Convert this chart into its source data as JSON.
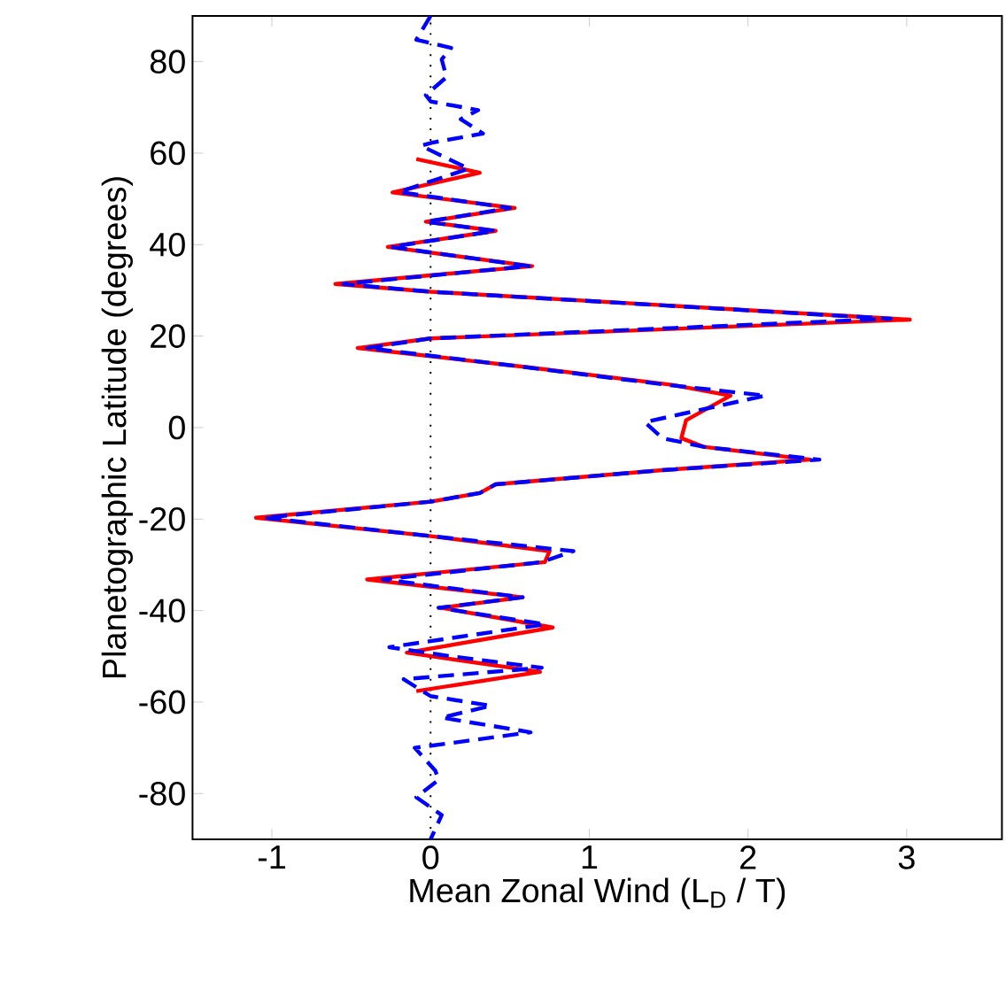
{
  "chart_data": {
    "type": "line",
    "xlabel": "Mean Zonal Wind (L$_{D}$ / T)",
    "ylabel": "Planetographic Latitude (degrees)",
    "xlim": [
      -1.5,
      3.6
    ],
    "ylim": [
      -90,
      90
    ],
    "xticks": [
      -1,
      0,
      1,
      2,
      3
    ],
    "yticks": [
      -80,
      -60,
      -40,
      -20,
      0,
      20,
      40,
      60,
      80
    ],
    "grid": false,
    "marker": "none",
    "ref_lines": [
      {
        "axis": "x",
        "value": 0,
        "color": "#000000",
        "line_style": "dotted"
      }
    ],
    "series": [
      {
        "color": "#ff0000",
        "line_style": "solid",
        "x": [
          -0.09,
          0.31,
          -0.24,
          0.53,
          -0.03,
          0.41,
          -0.27,
          0.64,
          -0.6,
          0.0,
          3.02,
          0.0,
          -0.46,
          0.61,
          1.53,
          1.89,
          1.61,
          1.58,
          1.72,
          2.39,
          1.46,
          0.41,
          0.31,
          0.0,
          -1.1,
          -0.03,
          0.75,
          0.72,
          -0.4,
          0.58,
          0.07,
          0.77,
          -0.15,
          0.69,
          -0.09
        ],
        "values": [
          58.7,
          55.7,
          51.4,
          48,
          45,
          43,
          39.5,
          35.3,
          31.4,
          29.7,
          23.6,
          19.5,
          17.4,
          13.2,
          9.3,
          7,
          1.6,
          -2.3,
          -4.2,
          -7,
          -9.3,
          -12.4,
          -14.3,
          -16.2,
          -19.7,
          -23.6,
          -27,
          -29.4,
          -33.2,
          -37.1,
          -39.4,
          -43.7,
          -49.2,
          -53.4,
          -57.6
        ]
      },
      {
        "color": "#0000ff",
        "line_style": "dashed",
        "x": [
          0,
          -0.09,
          0.13,
          0.07,
          0.1,
          -0.03,
          0.0,
          0.3,
          0.19,
          0.33,
          0.01,
          -0.06,
          0.24,
          -0.2,
          0.5,
          -0.03,
          0.41,
          -0.25,
          0.62,
          -0.55,
          0.0,
          2.9,
          0.0,
          -0.4,
          0.6,
          1.5,
          2.11,
          1.35,
          1.46,
          1.72,
          2.45,
          1.46,
          0.41,
          0.31,
          0.0,
          -1.05,
          -0.03,
          0.9,
          0.7,
          -0.3,
          0.58,
          0.05,
          0.72,
          -0.26,
          0.13,
          0.7,
          -0.17,
          0.0,
          0.38,
          0.07,
          0.63,
          0.14,
          -0.1,
          0.03,
          0.05,
          -0.09,
          0.07,
          0
        ],
        "values": [
          90,
          84.8,
          83,
          80.5,
          76.6,
          72.7,
          71.3,
          69.4,
          67.4,
          64.3,
          62.3,
          61.6,
          56.6,
          51.5,
          48,
          45,
          43,
          39.5,
          35.3,
          31.4,
          29.7,
          23.8,
          19.5,
          17.4,
          13.2,
          9.3,
          7,
          1.2,
          -2.3,
          -4.2,
          -7,
          -9.3,
          -12.4,
          -14.3,
          -16.2,
          -19.7,
          -23.6,
          -27,
          -29.4,
          -33.2,
          -37.1,
          -39.4,
          -43,
          -48,
          -50,
          -52.5,
          -55,
          -58.7,
          -60.8,
          -63.4,
          -66.6,
          -68.9,
          -70,
          -75,
          -77,
          -80.8,
          -84.7,
          -90
        ]
      }
    ]
  }
}
